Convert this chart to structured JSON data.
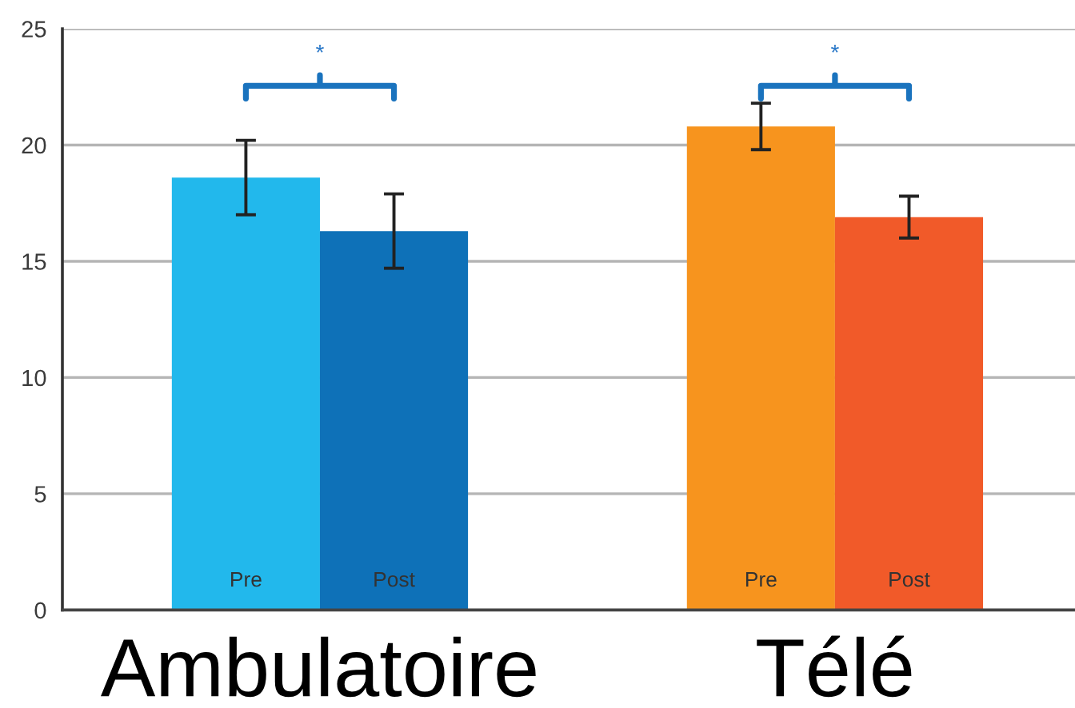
{
  "chart_data": {
    "type": "bar",
    "categories": [
      "Ambulatoire",
      "Télé"
    ],
    "series": [
      {
        "name": "Pre",
        "colors": [
          "#22b8ec",
          "#f7941e"
        ],
        "values": [
          18.6,
          20.8
        ],
        "errors": [
          1.6,
          1.0
        ]
      },
      {
        "name": "Post",
        "colors": [
          "#0e71b8",
          "#f15a29"
        ],
        "values": [
          16.3,
          16.9
        ],
        "errors": [
          1.6,
          0.9
        ]
      }
    ],
    "ylim": [
      0,
      25
    ],
    "yticks": [
      0,
      5,
      10,
      15,
      20,
      25
    ],
    "grid": "y",
    "annotations": [
      "*",
      "*"
    ]
  }
}
